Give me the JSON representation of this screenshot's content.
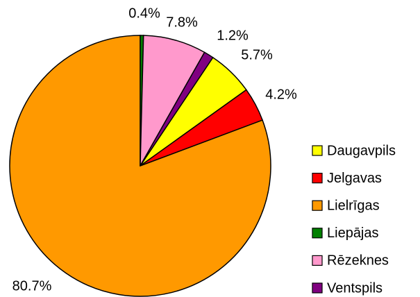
{
  "chart_data": {
    "type": "pie",
    "categories": [
      "Daugavpils",
      "Jelgavas",
      "Lielrīgas",
      "Liepājas",
      "Rēzeknes",
      "Ventspils"
    ],
    "values": [
      5.7,
      4.2,
      80.7,
      0.4,
      7.8,
      1.2
    ],
    "value_labels": [
      "5.7%",
      "4.2%",
      "80.7%",
      "0.4%",
      "7.8%",
      "1.2%"
    ],
    "colors": [
      "#ffff00",
      "#ff0000",
      "#ff9900",
      "#008000",
      "#ff99cc",
      "#800080"
    ],
    "legend": "right"
  }
}
